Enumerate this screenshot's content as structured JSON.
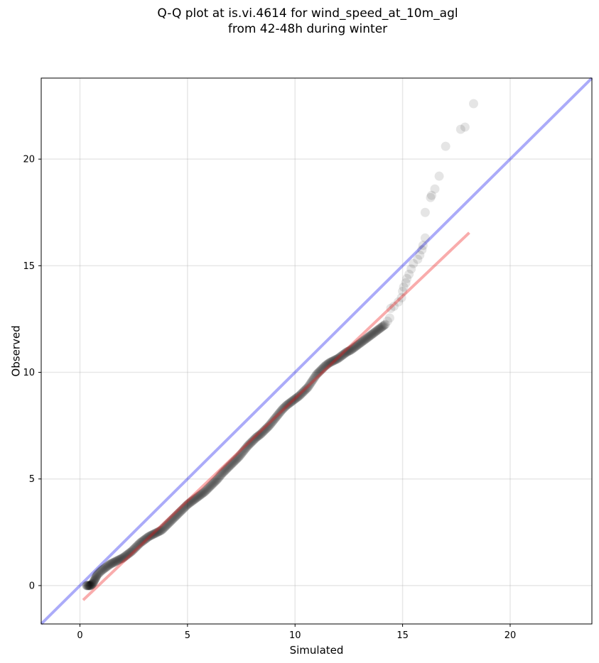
{
  "chart_data": {
    "type": "scatter",
    "title_line1": "Q-Q plot at is.vi.4614 for wind_speed_at_10m_agl",
    "title_line2": "from 42-48h during winter",
    "xlabel": "Simulated",
    "ylabel": "Observed",
    "xlim": [
      -1.8,
      23.8
    ],
    "ylim": [
      -1.8,
      23.8
    ],
    "xticks": [
      "0",
      "5",
      "10",
      "15",
      "20"
    ],
    "yticks": [
      "0",
      "5",
      "10",
      "15",
      "20"
    ],
    "grid": true,
    "point_color": "#000000",
    "reference_line": {
      "name": "1:1 line",
      "color": "#0000ee",
      "x": [
        -1.8,
        23.8
      ],
      "y": [
        -1.8,
        23.8
      ]
    },
    "fit_line": {
      "name": "fit",
      "color": "#ee1111",
      "x": [
        0.15,
        18.1
      ],
      "y": [
        -0.68,
        16.55
      ]
    },
    "points": [
      [
        0.3,
        0.0
      ],
      [
        0.4,
        0.0
      ],
      [
        0.5,
        0.0
      ],
      [
        0.6,
        0.1
      ],
      [
        0.7,
        0.3
      ],
      [
        0.8,
        0.5
      ],
      [
        1.0,
        0.7
      ],
      [
        1.2,
        0.85
      ],
      [
        1.4,
        1.0
      ],
      [
        1.6,
        1.1
      ],
      [
        1.8,
        1.2
      ],
      [
        2.0,
        1.3
      ],
      [
        2.2,
        1.45
      ],
      [
        2.4,
        1.6
      ],
      [
        2.6,
        1.8
      ],
      [
        2.8,
        2.0
      ],
      [
        3.0,
        2.15
      ],
      [
        3.2,
        2.3
      ],
      [
        3.4,
        2.4
      ],
      [
        3.6,
        2.5
      ],
      [
        3.8,
        2.6
      ],
      [
        4.0,
        2.8
      ],
      [
        4.2,
        3.0
      ],
      [
        4.4,
        3.2
      ],
      [
        4.6,
        3.4
      ],
      [
        4.8,
        3.6
      ],
      [
        5.0,
        3.8
      ],
      [
        5.2,
        3.95
      ],
      [
        5.4,
        4.1
      ],
      [
        5.6,
        4.25
      ],
      [
        5.8,
        4.4
      ],
      [
        6.0,
        4.6
      ],
      [
        6.2,
        4.8
      ],
      [
        6.4,
        5.0
      ],
      [
        6.6,
        5.25
      ],
      [
        6.8,
        5.45
      ],
      [
        7.0,
        5.65
      ],
      [
        7.2,
        5.85
      ],
      [
        7.4,
        6.05
      ],
      [
        7.6,
        6.3
      ],
      [
        7.8,
        6.55
      ],
      [
        8.0,
        6.75
      ],
      [
        8.2,
        6.95
      ],
      [
        8.4,
        7.1
      ],
      [
        8.6,
        7.3
      ],
      [
        8.8,
        7.5
      ],
      [
        9.0,
        7.75
      ],
      [
        9.2,
        8.0
      ],
      [
        9.4,
        8.25
      ],
      [
        9.6,
        8.45
      ],
      [
        9.8,
        8.6
      ],
      [
        10.0,
        8.75
      ],
      [
        10.2,
        8.9
      ],
      [
        10.4,
        9.1
      ],
      [
        10.6,
        9.3
      ],
      [
        10.8,
        9.6
      ],
      [
        11.0,
        9.9
      ],
      [
        11.2,
        10.1
      ],
      [
        11.4,
        10.3
      ],
      [
        11.6,
        10.45
      ],
      [
        11.8,
        10.55
      ],
      [
        12.0,
        10.65
      ],
      [
        12.2,
        10.8
      ],
      [
        12.4,
        10.95
      ],
      [
        12.6,
        11.05
      ],
      [
        12.8,
        11.2
      ],
      [
        13.0,
        11.35
      ],
      [
        13.2,
        11.5
      ],
      [
        13.4,
        11.65
      ],
      [
        13.6,
        11.8
      ],
      [
        13.8,
        11.95
      ],
      [
        14.0,
        12.1
      ],
      [
        14.2,
        12.25
      ],
      [
        14.3,
        12.4
      ],
      [
        14.4,
        12.55
      ],
      [
        14.45,
        13.0
      ],
      [
        14.6,
        13.1
      ],
      [
        14.8,
        13.3
      ],
      [
        14.95,
        13.5
      ],
      [
        15.0,
        13.8
      ],
      [
        15.05,
        14.0
      ],
      [
        15.15,
        14.2
      ],
      [
        15.2,
        14.4
      ],
      [
        15.3,
        14.6
      ],
      [
        15.4,
        14.85
      ],
      [
        15.5,
        15.1
      ],
      [
        15.7,
        15.3
      ],
      [
        15.8,
        15.5
      ],
      [
        15.9,
        15.75
      ],
      [
        15.95,
        15.95
      ],
      [
        16.05,
        16.3
      ],
      [
        16.05,
        17.5
      ],
      [
        16.3,
        18.2
      ],
      [
        16.35,
        18.3
      ],
      [
        16.5,
        18.6
      ],
      [
        16.7,
        19.2
      ],
      [
        17.0,
        20.6
      ],
      [
        17.7,
        21.4
      ],
      [
        17.9,
        21.5
      ],
      [
        18.3,
        22.6
      ]
    ]
  }
}
